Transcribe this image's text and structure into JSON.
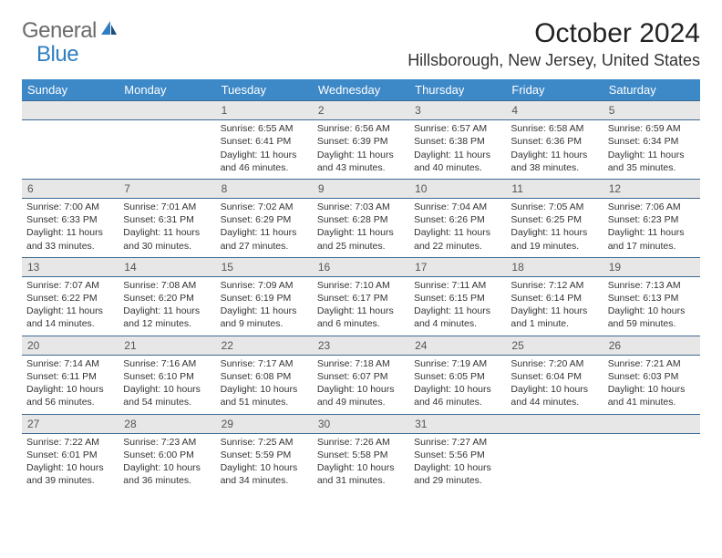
{
  "colors": {
    "header_bg": "#3d88c7",
    "header_fg": "#ffffff",
    "daynum_bg": "#e7e7e7",
    "daynum_fg": "#555555",
    "daynum_border": "#3d6a94",
    "body_bg": "#ffffff",
    "text": "#333333",
    "logo_gray": "#6b6b6b",
    "logo_blue": "#2f7ec2"
  },
  "logo": {
    "part1": "General",
    "part2": "Blue"
  },
  "title": "October 2024",
  "location": "Hillsborough, New Jersey, United States",
  "weekdays": [
    "Sunday",
    "Monday",
    "Tuesday",
    "Wednesday",
    "Thursday",
    "Friday",
    "Saturday"
  ],
  "first_weekday": 2,
  "days_in_month": 31,
  "days": {
    "1": {
      "sunrise": "6:55 AM",
      "sunset": "6:41 PM",
      "daylight": "11 hours and 46 minutes."
    },
    "2": {
      "sunrise": "6:56 AM",
      "sunset": "6:39 PM",
      "daylight": "11 hours and 43 minutes."
    },
    "3": {
      "sunrise": "6:57 AM",
      "sunset": "6:38 PM",
      "daylight": "11 hours and 40 minutes."
    },
    "4": {
      "sunrise": "6:58 AM",
      "sunset": "6:36 PM",
      "daylight": "11 hours and 38 minutes."
    },
    "5": {
      "sunrise": "6:59 AM",
      "sunset": "6:34 PM",
      "daylight": "11 hours and 35 minutes."
    },
    "6": {
      "sunrise": "7:00 AM",
      "sunset": "6:33 PM",
      "daylight": "11 hours and 33 minutes."
    },
    "7": {
      "sunrise": "7:01 AM",
      "sunset": "6:31 PM",
      "daylight": "11 hours and 30 minutes."
    },
    "8": {
      "sunrise": "7:02 AM",
      "sunset": "6:29 PM",
      "daylight": "11 hours and 27 minutes."
    },
    "9": {
      "sunrise": "7:03 AM",
      "sunset": "6:28 PM",
      "daylight": "11 hours and 25 minutes."
    },
    "10": {
      "sunrise": "7:04 AM",
      "sunset": "6:26 PM",
      "daylight": "11 hours and 22 minutes."
    },
    "11": {
      "sunrise": "7:05 AM",
      "sunset": "6:25 PM",
      "daylight": "11 hours and 19 minutes."
    },
    "12": {
      "sunrise": "7:06 AM",
      "sunset": "6:23 PM",
      "daylight": "11 hours and 17 minutes."
    },
    "13": {
      "sunrise": "7:07 AM",
      "sunset": "6:22 PM",
      "daylight": "11 hours and 14 minutes."
    },
    "14": {
      "sunrise": "7:08 AM",
      "sunset": "6:20 PM",
      "daylight": "11 hours and 12 minutes."
    },
    "15": {
      "sunrise": "7:09 AM",
      "sunset": "6:19 PM",
      "daylight": "11 hours and 9 minutes."
    },
    "16": {
      "sunrise": "7:10 AM",
      "sunset": "6:17 PM",
      "daylight": "11 hours and 6 minutes."
    },
    "17": {
      "sunrise": "7:11 AM",
      "sunset": "6:15 PM",
      "daylight": "11 hours and 4 minutes."
    },
    "18": {
      "sunrise": "7:12 AM",
      "sunset": "6:14 PM",
      "daylight": "11 hours and 1 minute."
    },
    "19": {
      "sunrise": "7:13 AM",
      "sunset": "6:13 PM",
      "daylight": "10 hours and 59 minutes."
    },
    "20": {
      "sunrise": "7:14 AM",
      "sunset": "6:11 PM",
      "daylight": "10 hours and 56 minutes."
    },
    "21": {
      "sunrise": "7:16 AM",
      "sunset": "6:10 PM",
      "daylight": "10 hours and 54 minutes."
    },
    "22": {
      "sunrise": "7:17 AM",
      "sunset": "6:08 PM",
      "daylight": "10 hours and 51 minutes."
    },
    "23": {
      "sunrise": "7:18 AM",
      "sunset": "6:07 PM",
      "daylight": "10 hours and 49 minutes."
    },
    "24": {
      "sunrise": "7:19 AM",
      "sunset": "6:05 PM",
      "daylight": "10 hours and 46 minutes."
    },
    "25": {
      "sunrise": "7:20 AM",
      "sunset": "6:04 PM",
      "daylight": "10 hours and 44 minutes."
    },
    "26": {
      "sunrise": "7:21 AM",
      "sunset": "6:03 PM",
      "daylight": "10 hours and 41 minutes."
    },
    "27": {
      "sunrise": "7:22 AM",
      "sunset": "6:01 PM",
      "daylight": "10 hours and 39 minutes."
    },
    "28": {
      "sunrise": "7:23 AM",
      "sunset": "6:00 PM",
      "daylight": "10 hours and 36 minutes."
    },
    "29": {
      "sunrise": "7:25 AM",
      "sunset": "5:59 PM",
      "daylight": "10 hours and 34 minutes."
    },
    "30": {
      "sunrise": "7:26 AM",
      "sunset": "5:58 PM",
      "daylight": "10 hours and 31 minutes."
    },
    "31": {
      "sunrise": "7:27 AM",
      "sunset": "5:56 PM",
      "daylight": "10 hours and 29 minutes."
    }
  },
  "labels": {
    "sunrise": "Sunrise: ",
    "sunset": "Sunset: ",
    "daylight": "Daylight: "
  }
}
